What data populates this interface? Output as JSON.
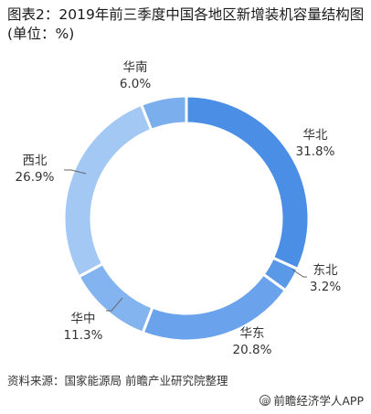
{
  "title": "图表2：2019年前三季度中国各地区新增装机容量结构图(单位：%)",
  "source": "资料来源：国家能源局 前瞻产业研究院整理",
  "brand": {
    "icon": "at-sign-icon",
    "text": "前瞻经济学人APP"
  },
  "chart_data": {
    "type": "pie",
    "subtype": "donut",
    "title": "图表2：2019年前三季度中国各地区新增装机容量结构图(单位：%)",
    "categories": [
      "华北",
      "东北",
      "华东",
      "华中",
      "西北",
      "华南"
    ],
    "values": [
      31.8,
      3.2,
      20.8,
      11.3,
      26.9,
      6.0
    ],
    "value_labels": [
      "31.8%",
      "3.2%",
      "20.8%",
      "11.3%",
      "26.9%",
      "6.0%"
    ],
    "colors": [
      "#4a8ee6",
      "#5a98e8",
      "#6aa3ec",
      "#84b4ef",
      "#a3c8f4",
      "#7aaeec"
    ],
    "legend": "none",
    "start_angle_deg": 0,
    "direction": "clockwise"
  }
}
